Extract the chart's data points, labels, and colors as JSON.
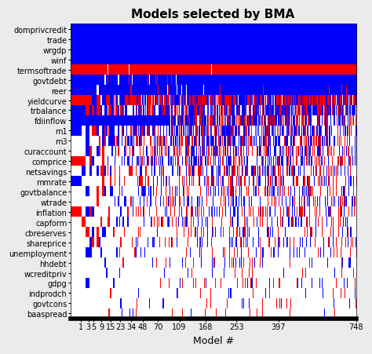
{
  "title": "Models selected by BMA",
  "xlabel": "Model #",
  "variables": [
    "domprivcredit",
    "trade",
    "wrgdp",
    "winf",
    "termsoftrade",
    "govtdebt",
    "reer",
    "yieldcurve",
    "trbalance",
    "fdiinflow",
    "m1",
    "m3",
    "curaccount",
    "comprice",
    "netsavings",
    "mmrate",
    "govtbalance",
    "wtrade",
    "inflation",
    "capform",
    "cbreserves",
    "shareprice",
    "unemployment",
    "hhdebt",
    "wcreditpriv",
    "gdpg",
    "indprodch",
    "govtcons",
    "baaspread"
  ],
  "xtick_labels": [
    "1",
    "3",
    "5",
    "9",
    "15",
    "23",
    "34",
    "48",
    "70",
    "109",
    "168",
    "253",
    "397",
    "748"
  ],
  "xtick_values": [
    1,
    3,
    5,
    9,
    15,
    23,
    34,
    48,
    70,
    109,
    168,
    253,
    397,
    748
  ],
  "n_models": 748,
  "title_fontsize": 11,
  "label_fontsize": 7,
  "axis_label_fontsize": 9,
  "bg_color": "#EBEBEB"
}
